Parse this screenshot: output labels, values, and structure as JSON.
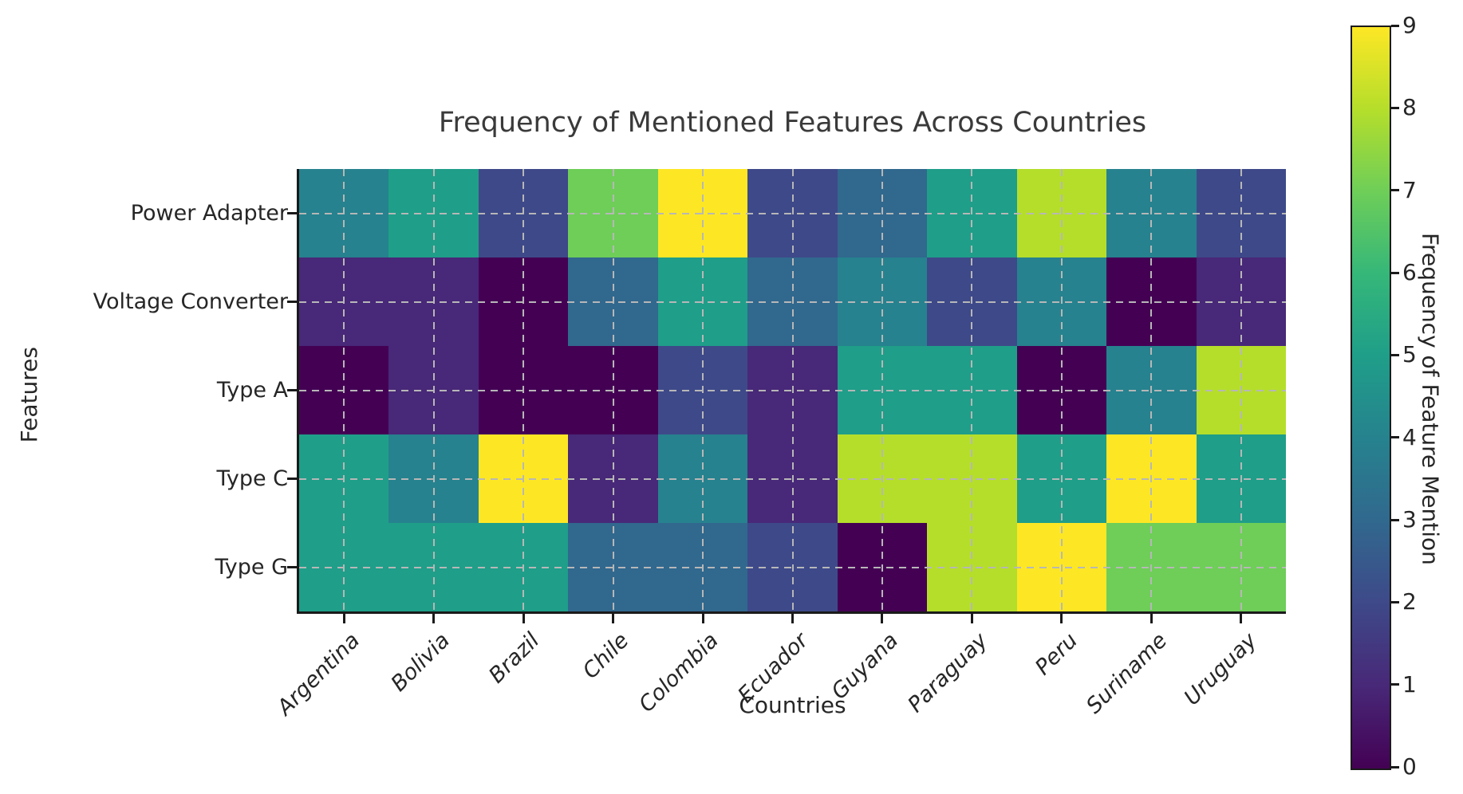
{
  "chart_data": {
    "type": "heatmap",
    "title": "Frequency of Mentioned Features Across Countries",
    "xlabel": "Countries",
    "ylabel": "Features",
    "colorbar_label": "Frequency of Feature Mention",
    "categories_x": [
      "Argentina",
      "Bolivia",
      "Brazil",
      "Chile",
      "Colombia",
      "Ecuador",
      "Guyana",
      "Paraguay",
      "Peru",
      "Suriname",
      "Uruguay"
    ],
    "categories_y": [
      "Power Adapter",
      "Voltage Converter",
      "Type A",
      "Type C",
      "Type G"
    ],
    "values": [
      [
        4,
        5,
        2,
        7,
        9,
        2,
        3,
        5,
        8,
        4,
        2
      ],
      [
        1,
        1,
        0,
        3,
        5,
        3,
        4,
        2,
        4,
        0,
        1
      ],
      [
        0,
        1,
        0,
        0,
        2,
        1,
        5,
        5,
        0,
        4,
        8
      ],
      [
        5,
        4,
        9,
        1,
        4,
        1,
        8,
        8,
        5,
        9,
        5
      ],
      [
        5,
        5,
        5,
        3,
        3,
        2,
        0,
        8,
        9,
        7,
        7
      ]
    ],
    "vmin": 0,
    "vmax": 9,
    "colormap": "viridis",
    "palette": [
      "#440154",
      "#482878",
      "#3e4989",
      "#31688e",
      "#26828e",
      "#1f9e89",
      "#35b779",
      "#6ece58",
      "#b5de2b",
      "#fde725"
    ],
    "grid": true,
    "grid_style": "dashed",
    "legend_position": "right-colorbar"
  },
  "colorbar": {
    "label": "Frequency of Feature Mention",
    "ticks": [
      "0",
      "1",
      "2",
      "3",
      "4",
      "5",
      "6",
      "7",
      "8",
      "9"
    ],
    "vmin": 0,
    "vmax": 9
  }
}
